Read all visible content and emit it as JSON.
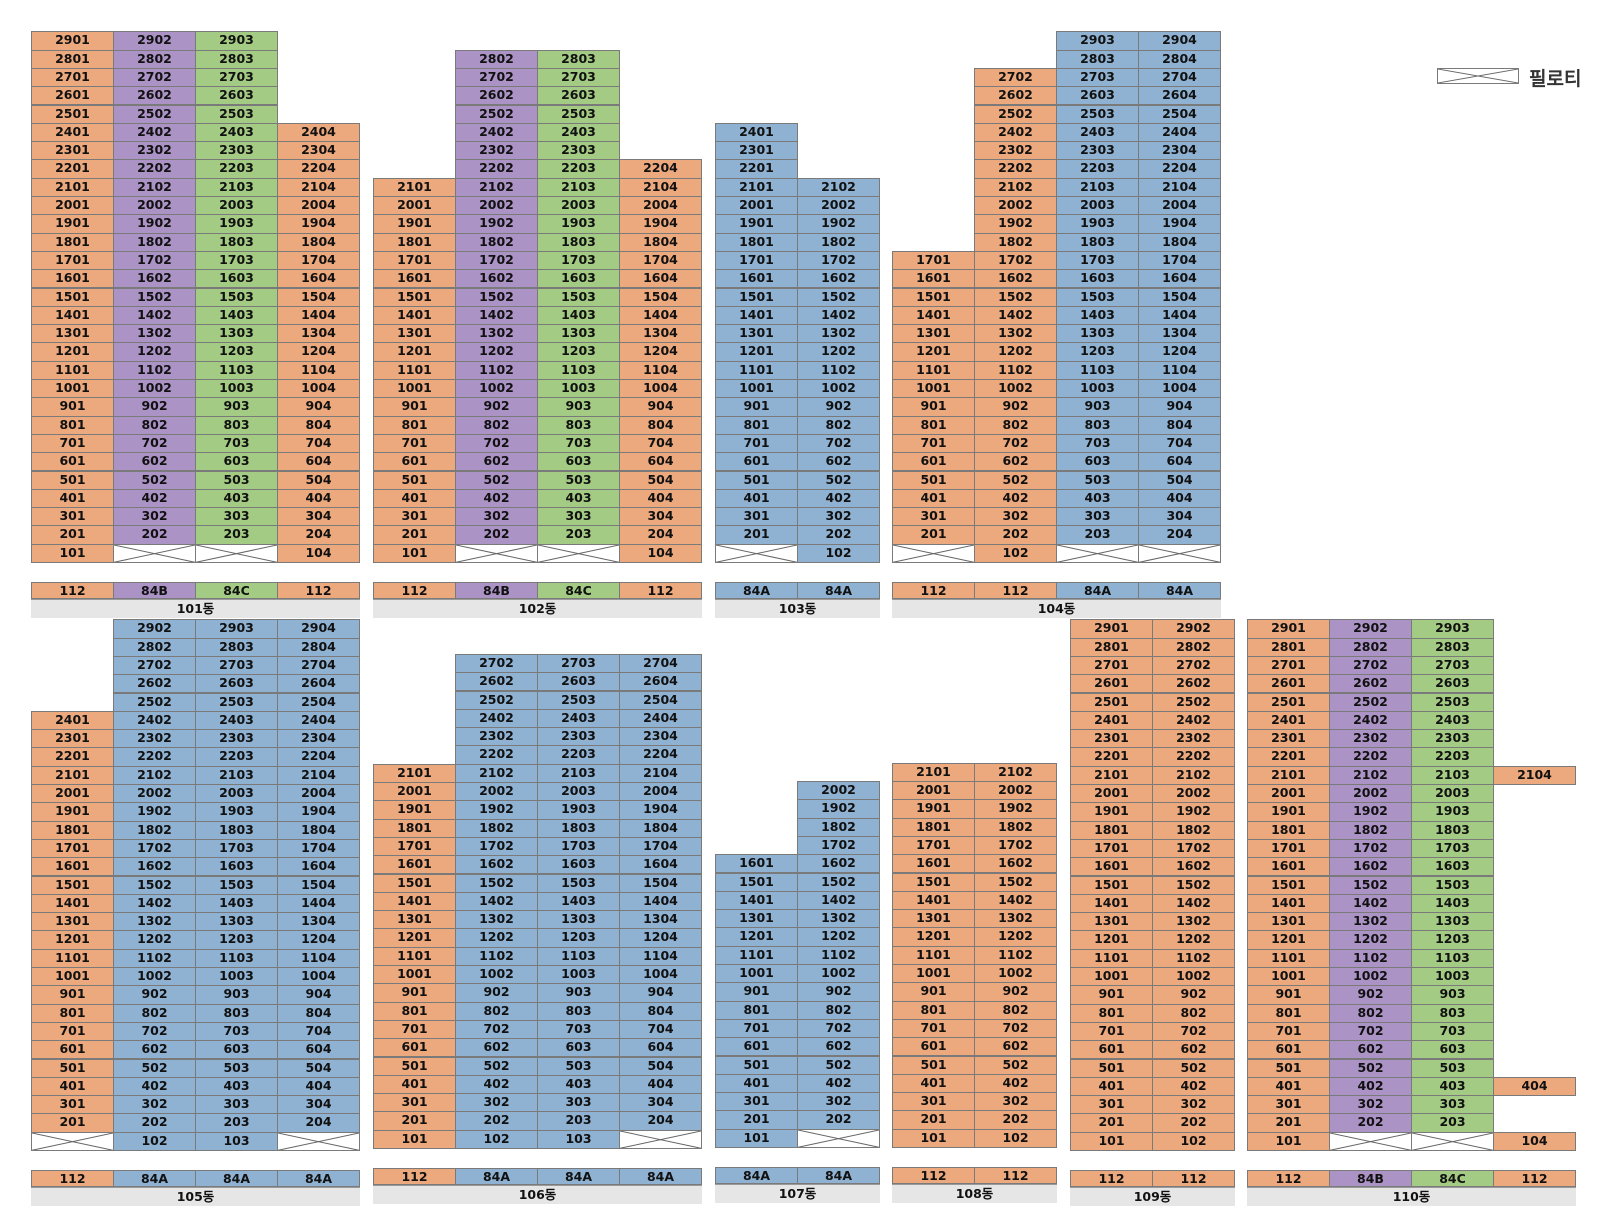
{
  "legend": {
    "label": "필로티"
  },
  "colors": {
    "112": "#eda97e",
    "84A": "#8fb2d2",
    "84B": "#ac93c6",
    "84C": "#a4cb84",
    "piloti": "#ffffff"
  },
  "buildings": [
    {
      "name": "101동",
      "cols": [
        {
          "type": "112",
          "top": 29,
          "bottom": 1,
          "skip": []
        },
        {
          "type": "84B",
          "top": 29,
          "bottom": 2,
          "skip": []
        },
        {
          "type": "84C",
          "top": 29,
          "bottom": 2,
          "skip": []
        },
        {
          "type": "112",
          "top": 24,
          "bottom": 1,
          "skip": []
        }
      ],
      "pilotis": [
        [
          2,
          1
        ],
        [
          3,
          1
        ]
      ]
    },
    {
      "name": "102동",
      "cols": [
        {
          "type": "112",
          "top": 21,
          "bottom": 1,
          "skip": []
        },
        {
          "type": "84B",
          "top": 28,
          "bottom": 2,
          "skip": []
        },
        {
          "type": "84C",
          "top": 28,
          "bottom": 2,
          "skip": []
        },
        {
          "type": "112",
          "top": 22,
          "bottom": 1,
          "skip": []
        }
      ],
      "pilotis": [
        [
          2,
          1
        ],
        [
          3,
          1
        ]
      ]
    },
    {
      "name": "103동",
      "cols": [
        {
          "type": "84A",
          "top": 24,
          "bottom": 2,
          "skip": []
        },
        {
          "type": "84A",
          "top": 21,
          "bottom": 1,
          "skip": []
        }
      ],
      "pilotis": [
        [
          1,
          1
        ]
      ]
    },
    {
      "name": "104동",
      "cols": [
        {
          "type": "112",
          "top": 17,
          "bottom": 2,
          "skip": []
        },
        {
          "type": "112",
          "top": 27,
          "bottom": 1,
          "skip": []
        },
        {
          "type": "84A",
          "top": 29,
          "bottom": 2,
          "skip": []
        },
        {
          "type": "84A",
          "top": 29,
          "bottom": 2,
          "skip": []
        }
      ],
      "pilotis": [
        [
          1,
          1
        ],
        [
          3,
          1
        ],
        [
          4,
          1
        ]
      ]
    },
    {
      "name": "105동",
      "cols": [
        {
          "type": "112",
          "top": 24,
          "bottom": 2,
          "skip": []
        },
        {
          "type": "84A",
          "top": 29,
          "bottom": 1,
          "skip": []
        },
        {
          "type": "84A",
          "top": 29,
          "bottom": 1,
          "skip": []
        },
        {
          "type": "84A",
          "top": 29,
          "bottom": 2,
          "skip": []
        }
      ],
      "pilotis": [
        [
          1,
          1
        ],
        [
          4,
          1
        ]
      ]
    },
    {
      "name": "106동",
      "cols": [
        {
          "type": "112",
          "top": 21,
          "bottom": 1,
          "skip": []
        },
        {
          "type": "84A",
          "top": 27,
          "bottom": 1,
          "skip": []
        },
        {
          "type": "84A",
          "top": 27,
          "bottom": 1,
          "skip": []
        },
        {
          "type": "84A",
          "top": 27,
          "bottom": 2,
          "skip": []
        }
      ],
      "pilotis": [
        [
          4,
          1
        ]
      ]
    },
    {
      "name": "107동",
      "cols": [
        {
          "type": "84A",
          "top": 16,
          "bottom": 1,
          "skip": []
        },
        {
          "type": "84A",
          "top": 20,
          "bottom": 2,
          "skip": []
        }
      ],
      "pilotis": [
        [
          2,
          1
        ]
      ]
    },
    {
      "name": "108동",
      "cols": [
        {
          "type": "112",
          "top": 21,
          "bottom": 1,
          "skip": []
        },
        {
          "type": "112",
          "top": 21,
          "bottom": 1,
          "skip": []
        }
      ],
      "pilotis": []
    },
    {
      "name": "109동",
      "cols": [
        {
          "type": "112",
          "top": 29,
          "bottom": 1,
          "skip": []
        },
        {
          "type": "112",
          "top": 29,
          "bottom": 1,
          "skip": []
        }
      ],
      "pilotis": []
    },
    {
      "name": "110동",
      "cols": [
        {
          "type": "112",
          "top": 29,
          "bottom": 1,
          "skip": []
        },
        {
          "type": "84B",
          "top": 29,
          "bottom": 2,
          "skip": []
        },
        {
          "type": "84C",
          "top": 29,
          "bottom": 2,
          "skip": []
        },
        {
          "type": "112",
          "top": 21,
          "bottom": 1,
          "skip": [
            2,
            3,
            5,
            6,
            7,
            8,
            9,
            10,
            11,
            12,
            13,
            14,
            15,
            16,
            17,
            18,
            19,
            20
          ]
        }
      ],
      "pilotis": [
        [
          2,
          1
        ],
        [
          3,
          1
        ]
      ]
    }
  ]
}
